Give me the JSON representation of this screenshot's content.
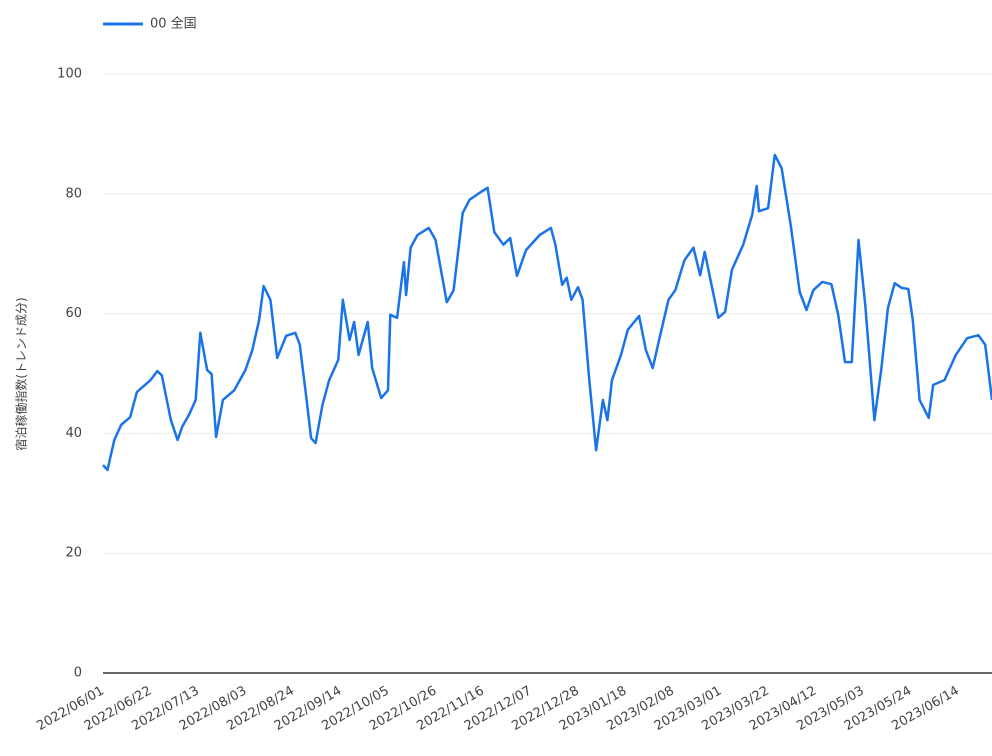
{
  "chart_data": {
    "type": "line",
    "y_label": "宿泊稼働指数(トレンド成分)",
    "x": [
      "2022/06/01",
      "2022/06/03",
      "2022/06/06",
      "2022/06/09",
      "2022/06/13",
      "2022/06/16",
      "2022/06/22",
      "2022/06/25",
      "2022/06/27",
      "2022/07/01",
      "2022/07/04",
      "2022/07/06",
      "2022/07/09",
      "2022/07/12",
      "2022/07/14",
      "2022/07/17",
      "2022/07/19",
      "2022/07/21",
      "2022/07/24",
      "2022/07/29",
      "2022/08/03",
      "2022/08/06",
      "2022/08/09",
      "2022/08/11",
      "2022/08/14",
      "2022/08/17",
      "2022/08/21",
      "2022/08/25",
      "2022/08/27",
      "2022/08/30",
      "2022/09/01",
      "2022/09/03",
      "2022/09/06",
      "2022/09/09",
      "2022/09/13",
      "2022/09/15",
      "2022/09/18",
      "2022/09/20",
      "2022/09/22",
      "2022/09/26",
      "2022/09/28",
      "2022/10/02",
      "2022/10/05",
      "2022/10/06",
      "2022/10/09",
      "2022/10/12",
      "2022/10/13",
      "2022/10/15",
      "2022/10/18",
      "2022/10/23",
      "2022/10/26",
      "2022/10/31",
      "2022/11/03",
      "2022/11/07",
      "2022/11/10",
      "2022/11/15",
      "2022/11/18",
      "2022/11/21",
      "2022/11/25",
      "2022/11/28",
      "2022/12/01",
      "2022/12/05",
      "2022/12/11",
      "2022/12/16",
      "2022/12/18",
      "2022/12/21",
      "2022/12/23",
      "2022/12/25",
      "2022/12/28",
      "2022/12/30",
      "2023/01/02",
      "2023/01/05",
      "2023/01/08",
      "2023/01/10",
      "2023/01/12",
      "2023/01/16",
      "2023/01/19",
      "2023/01/24",
      "2023/01/27",
      "2023/01/30",
      "2023/02/02",
      "2023/02/06",
      "2023/02/09",
      "2023/02/13",
      "2023/02/17",
      "2023/02/20",
      "2023/02/22",
      "2023/02/25",
      "2023/02/28",
      "2023/03/03",
      "2023/03/06",
      "2023/03/11",
      "2023/03/15",
      "2023/03/17",
      "2023/03/18",
      "2023/03/22",
      "2023/03/25",
      "2023/03/28",
      "2023/04/01",
      "2023/04/05",
      "2023/04/08",
      "2023/04/11",
      "2023/04/15",
      "2023/04/19",
      "2023/04/22",
      "2023/04/25",
      "2023/04/28",
      "2023/05/01",
      "2023/05/04",
      "2023/05/08",
      "2023/05/11",
      "2023/05/14",
      "2023/05/17",
      "2023/05/20",
      "2023/05/23",
      "2023/05/25",
      "2023/05/28",
      "2023/06/01",
      "2023/06/03",
      "2023/06/08",
      "2023/06/13",
      "2023/06/18",
      "2023/06/23",
      "2023/06/26",
      "2023/06/29"
    ],
    "series": [
      {
        "name": "00 全国",
        "color": "#1a73e8",
        "values": [
          34.7,
          33.9,
          38.9,
          41.4,
          42.7,
          46.9,
          48.9,
          50.4,
          49.7,
          42.2,
          38.9,
          41.1,
          43.1,
          45.6,
          56.8,
          50.6,
          49.9,
          39.4,
          45.6,
          47.2,
          50.6,
          53.9,
          58.9,
          64.6,
          62.3,
          52.6,
          56.3,
          56.8,
          54.8,
          45.6,
          39.2,
          38.4,
          44.7,
          48.9,
          52.3,
          62.3,
          55.6,
          58.6,
          53.1,
          58.6,
          50.9,
          45.9,
          47.2,
          59.8,
          59.3,
          68.6,
          63.1,
          71.0,
          73.1,
          74.3,
          72.3,
          61.9,
          63.9,
          76.8,
          79.0,
          80.3,
          81.0,
          73.6,
          71.5,
          72.6,
          66.3,
          70.6,
          73.1,
          74.3,
          71.5,
          64.8,
          66.0,
          62.3,
          64.4,
          62.3,
          48.9,
          37.2,
          45.6,
          42.2,
          48.9,
          53.1,
          57.3,
          59.6,
          53.9,
          50.9,
          55.9,
          62.3,
          63.9,
          68.9,
          71.0,
          66.4,
          70.3,
          64.8,
          59.3,
          60.3,
          67.3,
          71.5,
          76.5,
          81.3,
          77.1,
          77.6,
          86.5,
          84.3,
          74.8,
          63.6,
          60.6,
          63.9,
          65.3,
          64.9,
          59.8,
          51.9,
          51.9,
          72.3,
          61.4,
          42.2,
          50.6,
          60.9,
          65.1,
          64.3,
          64.1,
          58.9,
          45.6,
          42.6,
          48.1,
          48.9,
          53.1,
          55.9,
          56.4,
          54.8,
          45.6
        ]
      }
    ],
    "xlim": [
      "2022/06/01",
      "2023/06/29"
    ],
    "xticks": [
      "2022/06/01",
      "2022/06/22",
      "2022/07/13",
      "2022/08/03",
      "2022/08/24",
      "2022/09/14",
      "2022/10/05",
      "2022/10/26",
      "2022/11/16",
      "2022/12/07",
      "2022/12/28",
      "2023/01/18",
      "2023/02/08",
      "2023/03/01",
      "2023/03/22",
      "2023/04/12",
      "2023/05/03",
      "2023/05/24",
      "2023/06/14"
    ],
    "ylim": [
      0,
      100
    ],
    "yticks": [
      0,
      20,
      40,
      60,
      80,
      100
    ],
    "grid": true,
    "legend": "top-left"
  }
}
